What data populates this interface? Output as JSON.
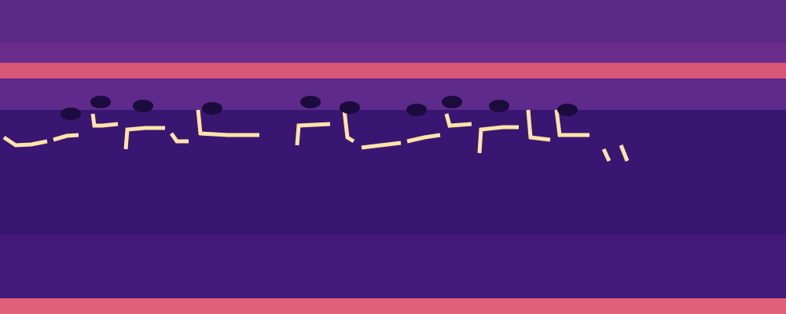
{
  "chart_data": {
    "type": "spectrogram",
    "tick_labels": false,
    "xlim": [
      0,
      1000
    ],
    "ylim": [
      0,
      400
    ],
    "bands": [
      {
        "y0": 345,
        "y1": 400,
        "color": "#5b2a86"
      },
      {
        "y0": 320,
        "y1": 345,
        "color": "#6a2d8c"
      },
      {
        "y0": 300,
        "y1": 320,
        "color": "#d9587a"
      },
      {
        "y0": 260,
        "y1": 300,
        "color": "#5e2a8c"
      },
      {
        "y0": 100,
        "y1": 260,
        "color": "#3a1673"
      },
      {
        "y0": 20,
        "y1": 100,
        "color": "#43197a"
      },
      {
        "y0": 0,
        "y1": 20,
        "color": "#e0607a"
      }
    ],
    "series": [
      {
        "type": "line",
        "color": "#ffe4a8",
        "x": [
          5,
          20,
          40,
          60,
          64,
          68,
          85,
          100,
          109,
          118,
          120,
          130,
          150,
          154,
          160,
          162,
          185,
          210,
          214,
          218,
          225,
          240,
          246,
          252,
          255,
          290,
          330,
          354,
          378,
          380,
          420,
          429,
          438,
          442,
          450,
          455,
          460,
          485,
          510,
          514,
          518,
          540,
          560,
          564,
          568,
          572,
          600,
          605,
          610,
          612,
          640,
          660,
          666,
          672,
          675,
          700,
          704,
          708,
          712,
          750,
          759,
          768,
          775,
          782,
          790,
          798
        ],
        "values": [
          225,
          215,
          216,
          220,
          null,
          222,
          227,
          228,
          null,
          255,
          240,
          240,
          242,
          null,
          210,
          235,
          237,
          237,
          null,
          230,
          220,
          220,
          null,
          260,
          230,
          228,
          228,
          null,
          215,
          240,
          242,
          null,
          260,
          225,
          220,
          null,
          212,
          215,
          218,
          null,
          220,
          225,
          228,
          null,
          255,
          240,
          242,
          null,
          205,
          235,
          238,
          238,
          null,
          260,
          225,
          222,
          null,
          260,
          228,
          228,
          null,
          210,
          195,
          null,
          215,
          195
        ]
      },
      {
        "type": "scatter",
        "color": "#1c0b3d",
        "x": [
          90,
          128,
          182,
          270,
          395,
          445,
          530,
          575,
          635,
          722
        ],
        "values": [
          255,
          270,
          265,
          262,
          270,
          263,
          260,
          270,
          265,
          260
        ]
      }
    ]
  }
}
